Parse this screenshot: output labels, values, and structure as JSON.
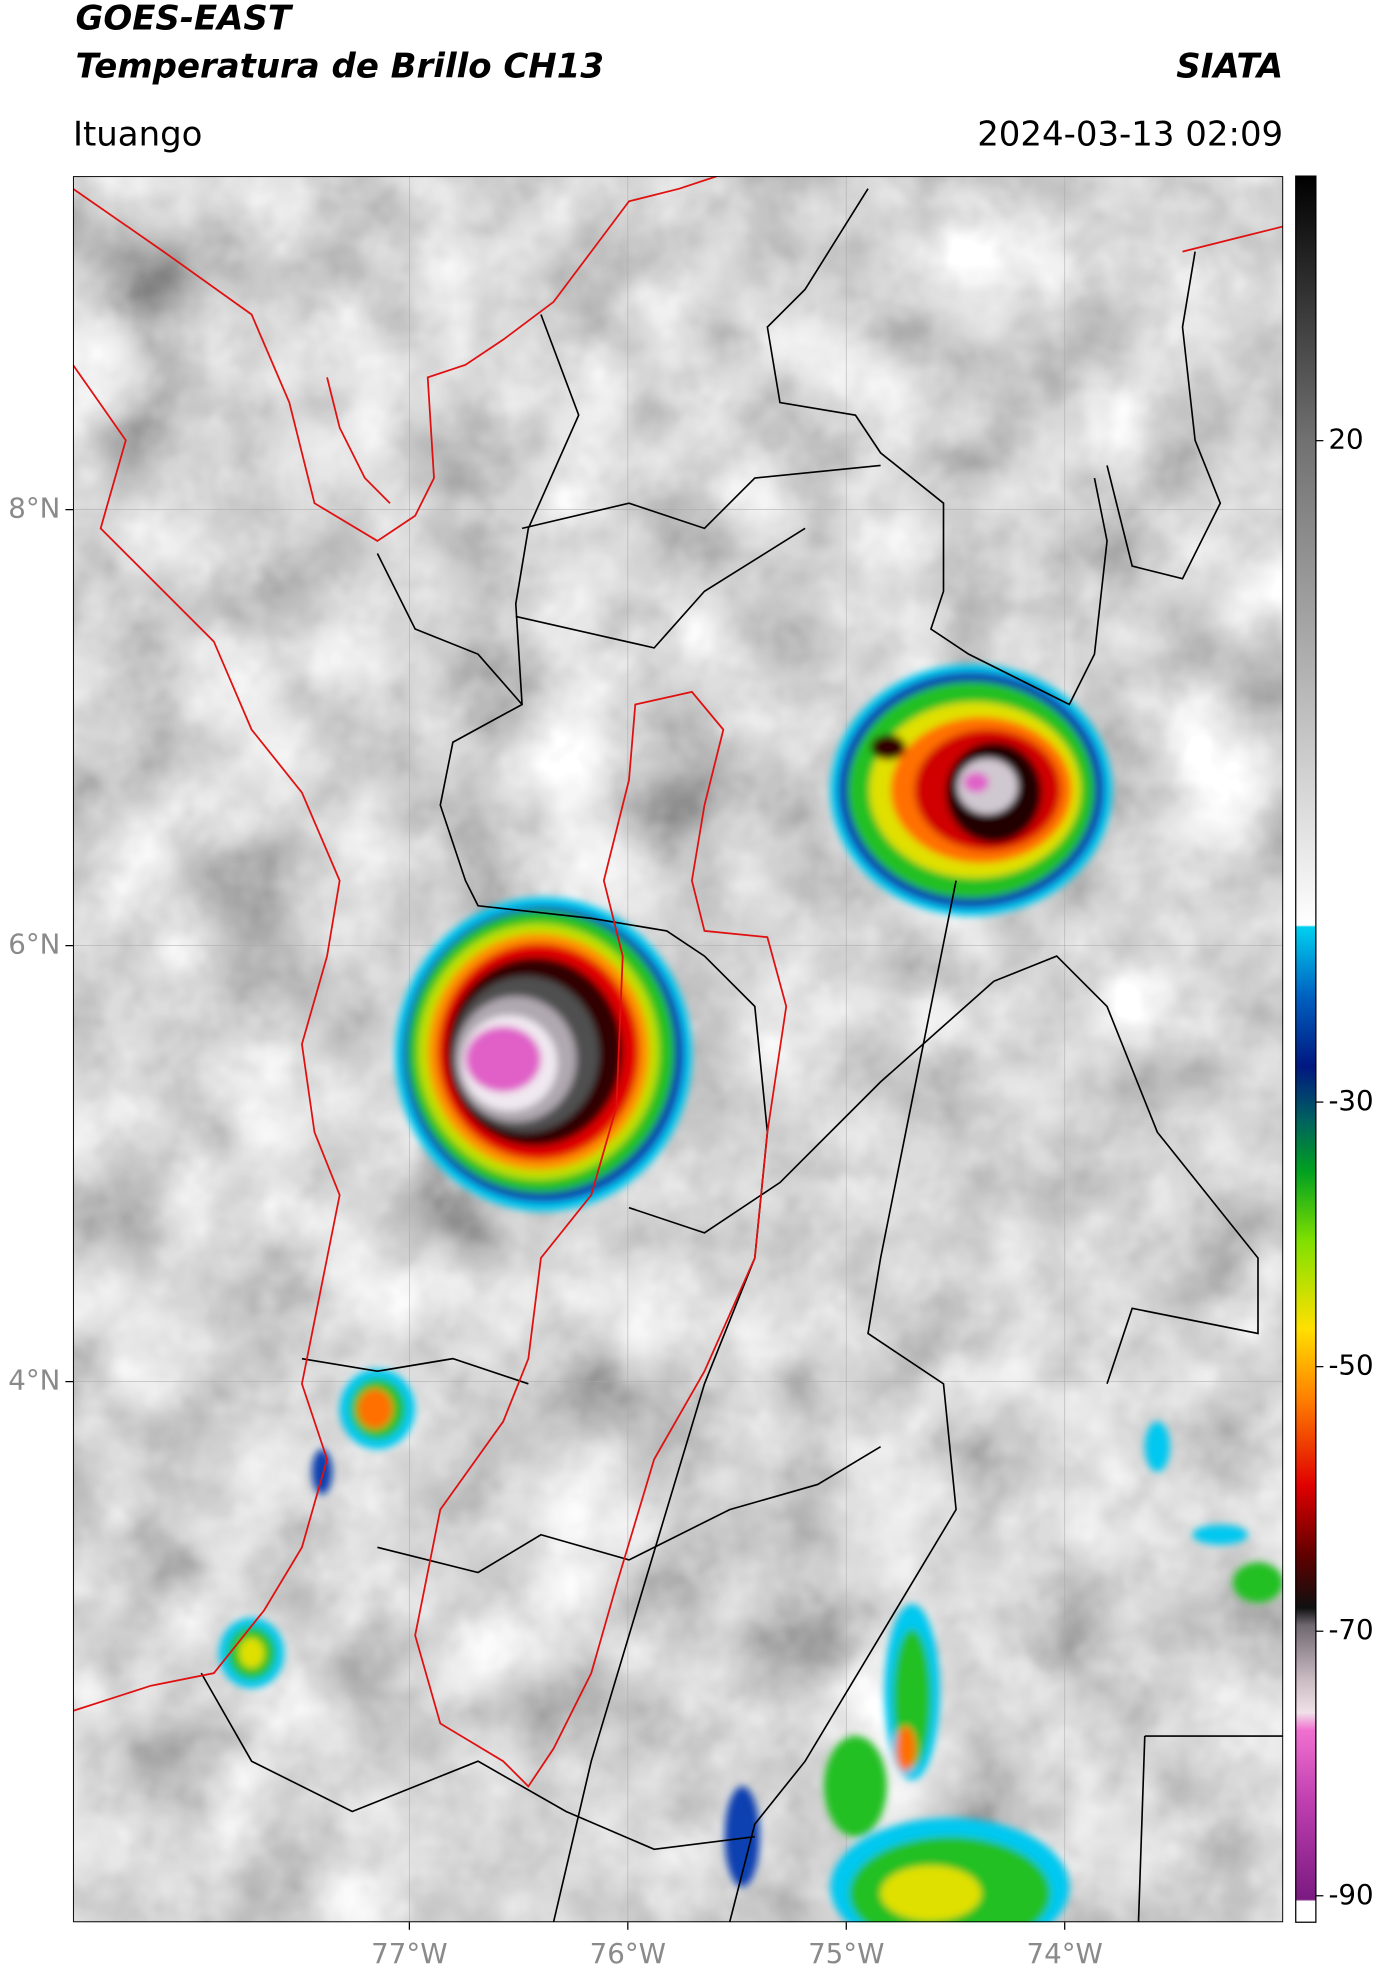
{
  "header": {
    "title": "GOES-EAST",
    "subtitle": "Temperatura de Brillo CH13",
    "source": "SIATA",
    "region": "Ituango",
    "datetime": "2024-03-13 02:09"
  },
  "map": {
    "xlim": [
      -78.54,
      -73.0
    ],
    "ylim": [
      1.52,
      9.53
    ],
    "xticks": [
      {
        "value": -77,
        "label": "77°W"
      },
      {
        "value": -76,
        "label": "76°W"
      },
      {
        "value": -75,
        "label": "75°W"
      },
      {
        "value": -74,
        "label": "74°W"
      }
    ],
    "yticks": [
      {
        "value": 8,
        "label": "8°N"
      },
      {
        "value": 6,
        "label": "6°N"
      },
      {
        "value": 4,
        "label": "4°N"
      }
    ],
    "grid": true
  },
  "colorbar": {
    "range": [
      -92,
      40
    ],
    "ticks": [
      20,
      -30,
      -50,
      -70,
      -90
    ]
  }
}
